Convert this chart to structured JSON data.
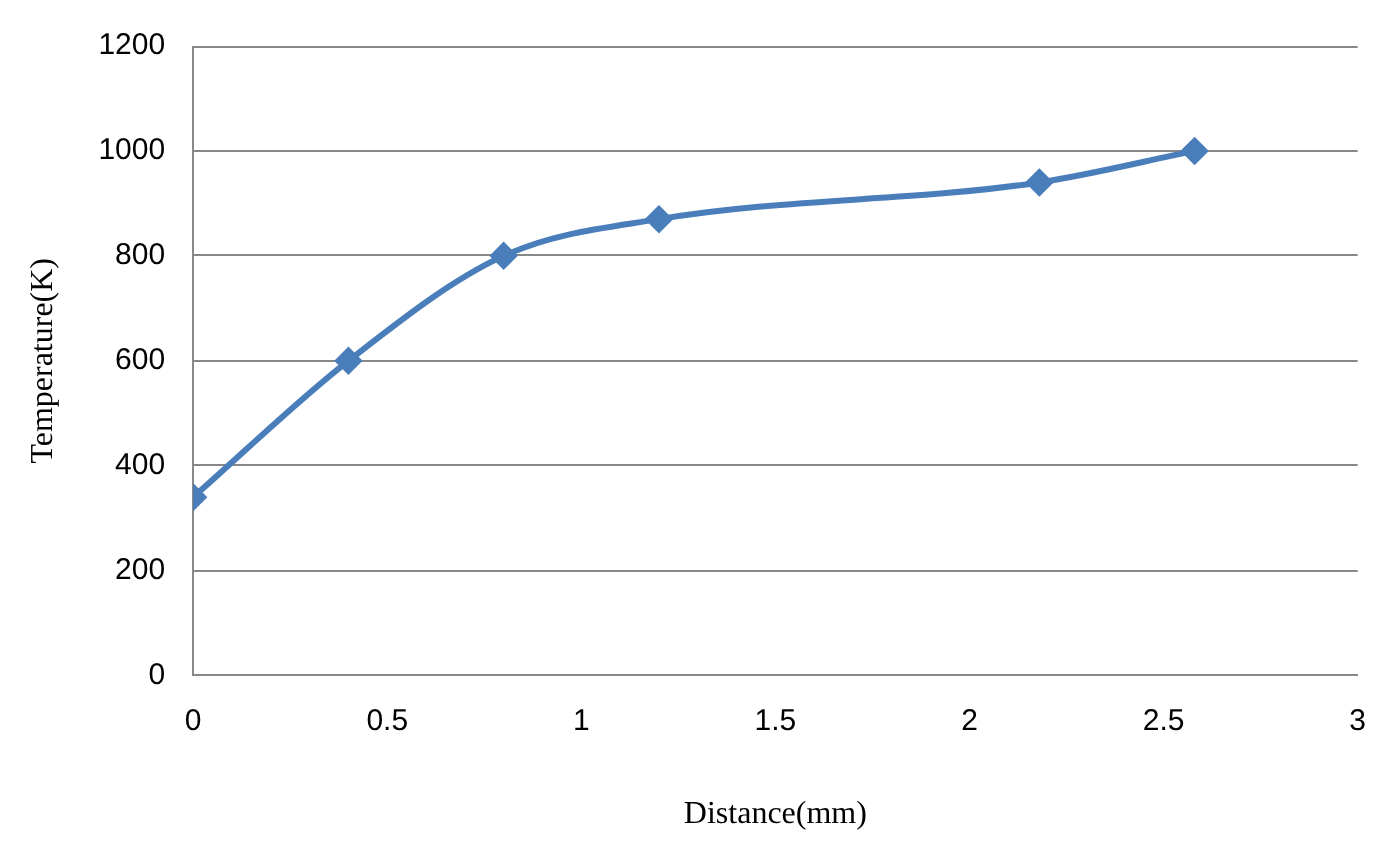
{
  "chart_data": {
    "type": "line",
    "xlabel": "Distance(mm)",
    "ylabel": "Temperature(K)",
    "x": [
      0,
      0.4,
      0.8,
      1.2,
      2.18,
      2.58
    ],
    "series": [
      {
        "color": "#4a7ebb",
        "values": [
          340,
          600,
          800,
          870,
          940,
          1000
        ]
      }
    ],
    "xlim": [
      0,
      3
    ],
    "xticks": [
      0,
      0.5,
      1,
      1.5,
      2,
      2.5,
      3
    ],
    "ylim": [
      0,
      1200
    ],
    "yticks": [
      0,
      200,
      400,
      600,
      800,
      1000,
      1200
    ],
    "grid": "y",
    "legend": false,
    "marker": "diamond",
    "line_style": "solid"
  }
}
